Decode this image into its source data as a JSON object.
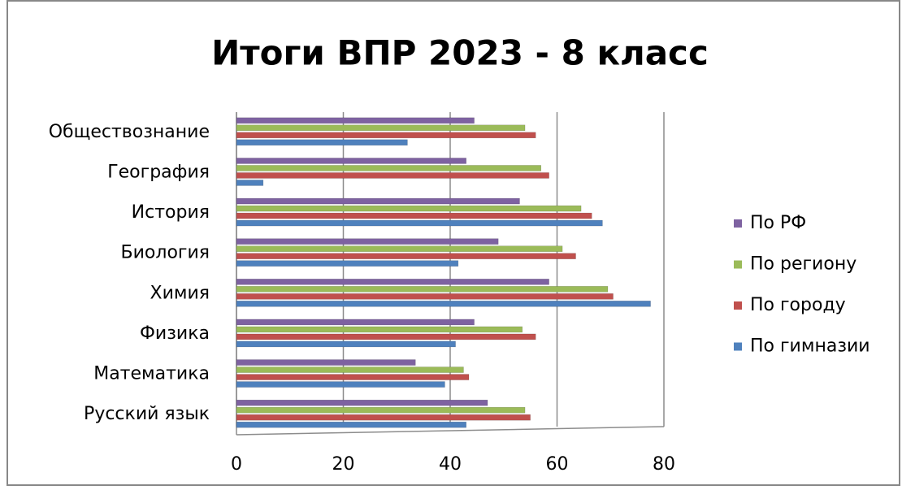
{
  "chart_data": {
    "type": "barh",
    "title": "Итоги ВПР 2023 - 8 класс",
    "categories": [
      "Обществознание",
      "География",
      "История",
      "Биология",
      "Химия",
      "Физика",
      "Математика",
      "Русский язык"
    ],
    "series": [
      {
        "name": "По РФ",
        "color": "#7e62a1",
        "values": [
          44.5,
          43,
          53,
          49,
          58.5,
          44.5,
          33.5,
          47
        ]
      },
      {
        "name": "По региону",
        "color": "#9bbb59",
        "values": [
          54,
          57,
          64.5,
          61,
          69.5,
          53.5,
          42.5,
          54
        ]
      },
      {
        "name": "По городу",
        "color": "#c0504d",
        "values": [
          56,
          58.5,
          66.5,
          63.5,
          70.5,
          56,
          43.5,
          55
        ]
      },
      {
        "name": "По гимназии",
        "color": "#4f81bd",
        "values": [
          32,
          5,
          68.5,
          41.5,
          77.5,
          41,
          39,
          43
        ]
      }
    ],
    "xlim": [
      0,
      80
    ],
    "xticks": [
      0,
      20,
      40,
      60,
      80
    ],
    "grid": true
  }
}
